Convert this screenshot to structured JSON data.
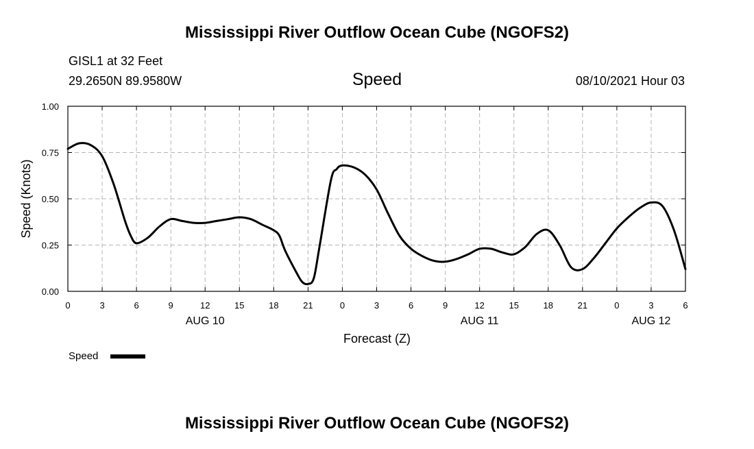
{
  "header": {
    "title_top": "Mississippi River Outflow Ocean Cube (NGOFS2)",
    "title_bottom": "Mississippi River Outflow Ocean Cube (NGOFS2)",
    "station": "GISL1 at 32 Feet",
    "location": "29.2650N  89.9580W",
    "variable": "Speed",
    "timestamp": "08/10/2021 Hour 03"
  },
  "legend": {
    "label": "Speed"
  },
  "colors": {
    "line": "#000000",
    "grid": "#b4b4b4"
  },
  "chart_data": {
    "type": "line",
    "title": "Speed",
    "xlabel": "Forecast (Z)",
    "ylabel": "Speed (Knots)",
    "xlim": [
      0,
      54
    ],
    "ylim": [
      0,
      1
    ],
    "grid": true,
    "xticks": [
      0,
      3,
      6,
      9,
      12,
      15,
      18,
      21,
      24,
      27,
      30,
      33,
      36,
      39,
      42,
      45,
      48,
      51,
      54
    ],
    "xtick_labels": [
      "0",
      "3",
      "6",
      "9",
      "12",
      "15",
      "18",
      "21",
      "0",
      "3",
      "6",
      "9",
      "12",
      "15",
      "18",
      "21",
      "0",
      "3",
      "6"
    ],
    "yticks": [
      0,
      0.25,
      0.5,
      0.75,
      1.0
    ],
    "ytick_labels": [
      "0.00",
      "0.25",
      "0.50",
      "0.75",
      "1.00"
    ],
    "date_labels": [
      {
        "x": 12,
        "label": "AUG 10"
      },
      {
        "x": 36,
        "label": "AUG 11"
      },
      {
        "x": 51,
        "label": "AUG 12"
      }
    ],
    "series": [
      {
        "name": "Speed",
        "x": [
          0,
          1,
          2,
          3,
          4,
          5,
          5.5,
          6,
          7,
          8,
          9,
          10,
          11,
          12,
          13,
          14,
          15,
          16,
          17,
          18,
          18.5,
          19,
          20,
          20.5,
          21,
          21.5,
          22,
          23,
          23.5,
          24,
          25,
          26,
          27,
          28,
          29,
          30,
          31,
          32,
          33,
          34,
          35,
          36,
          37,
          38,
          39,
          40,
          41,
          42,
          43,
          44,
          45,
          46,
          47,
          48,
          49,
          50,
          51,
          52,
          53,
          54
        ],
        "values": [
          0.77,
          0.8,
          0.79,
          0.73,
          0.58,
          0.38,
          0.3,
          0.26,
          0.29,
          0.35,
          0.39,
          0.38,
          0.37,
          0.37,
          0.38,
          0.39,
          0.4,
          0.39,
          0.36,
          0.33,
          0.3,
          0.22,
          0.1,
          0.05,
          0.04,
          0.07,
          0.24,
          0.6,
          0.66,
          0.68,
          0.67,
          0.63,
          0.55,
          0.42,
          0.3,
          0.23,
          0.19,
          0.165,
          0.16,
          0.175,
          0.2,
          0.23,
          0.23,
          0.21,
          0.2,
          0.24,
          0.31,
          0.33,
          0.25,
          0.13,
          0.12,
          0.18,
          0.26,
          0.34,
          0.4,
          0.45,
          0.48,
          0.46,
          0.33,
          0.12
        ]
      }
    ]
  }
}
